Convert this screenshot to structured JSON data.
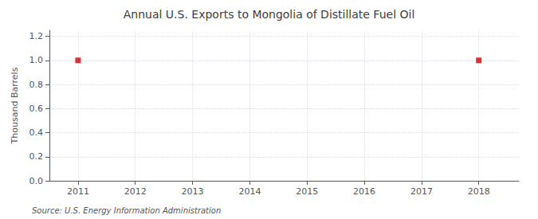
{
  "chart_data": {
    "type": "scatter",
    "title": "Annual U.S. Exports to Mongolia of Distillate Fuel Oil",
    "ylabel": "Thousand Barrels",
    "source": "Source: U.S. Energy Information Administration",
    "x": [
      2011,
      2018
    ],
    "values": [
      1.0,
      1.0
    ],
    "color": "#cc0000",
    "marker": "square",
    "xlim": [
      2010.5,
      2018.7
    ],
    "xticks": [
      2011,
      2012,
      2013,
      2014,
      2015,
      2016,
      2017,
      2018
    ],
    "ylim": [
      0.0,
      1.25
    ],
    "yticks": [
      {
        "value": 0,
        "label": "0.0"
      },
      0.2,
      0.4,
      0.6,
      0.8,
      {
        "value": 1,
        "label": "1.0"
      },
      1.2
    ],
    "grid": true
  }
}
